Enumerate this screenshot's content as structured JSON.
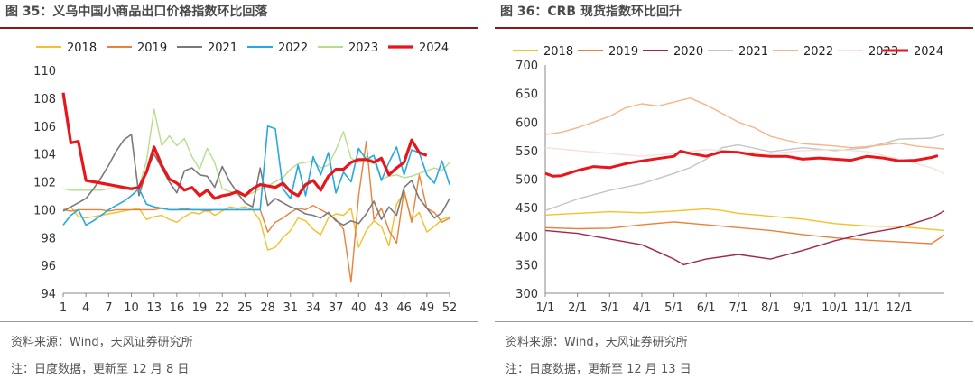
{
  "left": {
    "title": "图 35：义乌中国小商品出口价格指数环比回落",
    "source": "资料来源：Wind，天风证券研究所",
    "note": "注：日度数据，更新至 12 月 8 日"
  },
  "right": {
    "title": "图 36：CRB 现货指数环比回升",
    "source": "资料来源：Wind，天风证券研究所",
    "note": "注：日度数据，更新至 12 月 13 日"
  },
  "chart_data": [
    {
      "type": "line",
      "title": "图 35：义乌中国小商品出口价格指数环比回落",
      "x_ticks": [
        "1",
        "4",
        "7",
        "10",
        "13",
        "16",
        "19",
        "22",
        "25",
        "28",
        "31",
        "34",
        "37",
        "40",
        "43",
        "46",
        "49",
        "52"
      ],
      "xlim": [
        1,
        52
      ],
      "ylim": [
        94,
        110
      ],
      "y_ticks": [
        "94",
        "96",
        "98",
        "100",
        "102",
        "104",
        "106",
        "108",
        "110"
      ],
      "legend_position": "top",
      "series": [
        {
          "name": "2018",
          "color": "#F5C02A",
          "width": 1.4,
          "x": [
            1,
            2,
            3,
            4,
            5,
            6,
            7,
            8,
            9,
            10,
            11,
            12,
            13,
            14,
            15,
            16,
            17,
            18,
            19,
            20,
            21,
            22,
            23,
            24,
            25,
            26,
            27,
            28,
            29,
            30,
            31,
            32,
            33,
            34,
            35,
            36,
            37,
            38,
            39,
            40,
            41,
            42,
            43,
            44,
            45,
            46,
            47,
            48,
            49,
            50,
            51,
            52
          ],
          "y": [
            100.0,
            100.2,
            99.5,
            99.4,
            99.5,
            99.6,
            99.7,
            99.8,
            99.9,
            100.0,
            100.1,
            99.3,
            99.5,
            99.6,
            99.3,
            99.1,
            99.5,
            99.8,
            99.7,
            100.0,
            99.6,
            99.9,
            100.2,
            100.1,
            100.2,
            100.0,
            99.2,
            97.1,
            97.3,
            98.0,
            98.5,
            99.4,
            99.2,
            98.6,
            98.2,
            99.4,
            99.7,
            99.6,
            100.1,
            97.3,
            98.5,
            99.2,
            98.8,
            97.4,
            100.4,
            101.2,
            99.3,
            99.8,
            98.4,
            98.8,
            99.3,
            99.5
          ]
        },
        {
          "name": "2019",
          "color": "#E8823A",
          "width": 1.4,
          "x": [
            1,
            2,
            3,
            4,
            5,
            6,
            7,
            8,
            9,
            10,
            11,
            12,
            13,
            14,
            15,
            16,
            17,
            18,
            19,
            20,
            21,
            22,
            23,
            24,
            25,
            26,
            27,
            28,
            29,
            30,
            31,
            32,
            33,
            34,
            35,
            36,
            37,
            38,
            39,
            40,
            41,
            42,
            43,
            44,
            45,
            46,
            47,
            48,
            49,
            50,
            51,
            52
          ],
          "y": [
            100.0,
            99.9,
            100.0,
            100.0,
            100.0,
            100.0,
            99.9,
            100.0,
            100.0,
            100.0,
            100.0,
            100.0,
            100.0,
            100.1,
            100.0,
            100.0,
            100.1,
            100.0,
            100.0,
            99.9,
            100.0,
            100.0,
            100.0,
            100.0,
            100.0,
            100.0,
            100.0,
            98.4,
            99.1,
            99.4,
            99.8,
            100.1,
            100.0,
            100.3,
            100.0,
            99.7,
            99.3,
            98.6,
            94.8,
            101.0,
            104.9,
            99.3,
            100.1,
            98.5,
            97.6,
            101.4,
            99.1,
            102.5,
            100.1,
            99.8,
            99.1,
            99.4
          ]
        },
        {
          "name": "2021",
          "color": "#7A7A7A",
          "width": 1.6,
          "x": [
            1,
            2,
            3,
            4,
            5,
            6,
            7,
            8,
            9,
            10,
            11,
            12,
            13,
            14,
            15,
            16,
            17,
            18,
            19,
            20,
            21,
            22,
            23,
            24,
            25,
            26,
            27,
            28,
            29,
            30,
            31,
            32,
            33,
            34,
            35,
            36,
            37,
            38,
            39,
            40,
            41,
            42,
            43,
            44,
            45,
            46,
            47,
            48,
            49,
            50,
            51,
            52
          ],
          "y": [
            99.9,
            100.2,
            100.5,
            100.8,
            101.5,
            102.3,
            103.2,
            104.2,
            105.0,
            105.4,
            101.0,
            102.8,
            104.0,
            103.0,
            102.0,
            101.2,
            102.8,
            103.0,
            102.5,
            102.4,
            101.6,
            103.1,
            102.0,
            101.2,
            100.5,
            100.2,
            103.0,
            100.3,
            100.8,
            100.5,
            100.2,
            100.0,
            99.7,
            99.6,
            99.4,
            99.8,
            99.2,
            98.9,
            99.2,
            99.0,
            99.7,
            100.6,
            99.3,
            100.2,
            99.6,
            101.6,
            102.1,
            100.8,
            100.1,
            99.4,
            99.8,
            100.8
          ]
        },
        {
          "name": "2022",
          "color": "#26A9E0",
          "width": 1.6,
          "x": [
            1,
            2,
            3,
            4,
            5,
            6,
            7,
            8,
            9,
            10,
            11,
            12,
            13,
            14,
            15,
            16,
            17,
            18,
            19,
            20,
            21,
            22,
            23,
            24,
            25,
            26,
            27,
            28,
            29,
            30,
            31,
            32,
            33,
            34,
            35,
            36,
            37,
            38,
            39,
            40,
            41,
            42,
            43,
            44,
            45,
            46,
            47,
            48,
            49,
            50,
            51,
            52
          ],
          "y": [
            98.9,
            99.6,
            100.0,
            98.9,
            99.2,
            99.6,
            100.0,
            100.3,
            100.6,
            101.0,
            101.5,
            100.4,
            100.2,
            100.1,
            100.0,
            100.0,
            100.0,
            100.0,
            100.0,
            100.0,
            100.0,
            100.0,
            100.0,
            100.0,
            100.0,
            100.0,
            100.0,
            106.0,
            105.8,
            101.5,
            100.8,
            103.2,
            101.0,
            103.8,
            102.5,
            104.1,
            101.2,
            102.7,
            102.0,
            104.4,
            103.6,
            103.9,
            102.1,
            103.4,
            104.5,
            102.5,
            104.3,
            104.1,
            102.5,
            101.9,
            103.5,
            101.8
          ]
        },
        {
          "name": "2023",
          "color": "#B5DE8C",
          "width": 1.4,
          "x": [
            1,
            2,
            3,
            4,
            5,
            6,
            7,
            8,
            9,
            10,
            11,
            12,
            13,
            14,
            15,
            16,
            17,
            18,
            19,
            20,
            21,
            22,
            23,
            24,
            25,
            26,
            27,
            28,
            29,
            30,
            31,
            32,
            33,
            34,
            35,
            36,
            37,
            38,
            39,
            40,
            41,
            42,
            43,
            44,
            45,
            46,
            47,
            48,
            49,
            50,
            51,
            52
          ],
          "y": [
            101.5,
            101.4,
            101.4,
            101.4,
            101.4,
            101.4,
            101.5,
            101.5,
            101.5,
            101.4,
            101.6,
            103.5,
            107.2,
            104.6,
            105.3,
            104.6,
            105.1,
            103.8,
            102.9,
            104.4,
            103.4,
            101.5,
            101.3,
            101.1,
            101.0,
            101.2,
            101.5,
            101.7,
            102.0,
            102.3,
            102.9,
            103.3,
            103.4,
            103.5,
            103.0,
            103.2,
            104.3,
            105.6,
            103.7,
            103.4,
            103.8,
            103.5,
            102.2,
            102.4,
            102.5,
            102.3,
            102.4,
            102.6,
            102.8,
            103.0,
            102.8,
            103.4
          ]
        },
        {
          "name": "2024",
          "color": "#E8151B",
          "width": 3.2,
          "x": [
            1,
            2,
            3,
            4,
            5,
            6,
            7,
            8,
            9,
            10,
            11,
            12,
            13,
            14,
            15,
            16,
            17,
            18,
            19,
            20,
            21,
            22,
            23,
            24,
            25,
            26,
            27,
            28,
            29,
            30,
            31,
            32,
            33,
            34,
            35,
            36,
            37,
            38,
            39,
            40,
            41,
            42,
            43,
            44,
            45,
            46,
            47,
            48,
            49
          ],
          "y": [
            108.4,
            104.8,
            104.9,
            102.1,
            102.0,
            101.9,
            101.8,
            101.7,
            101.6,
            101.5,
            101.6,
            102.7,
            104.5,
            103.2,
            102.2,
            101.9,
            101.4,
            101.6,
            101.0,
            101.4,
            100.8,
            101.0,
            101.1,
            101.3,
            101.0,
            101.5,
            101.8,
            101.7,
            101.6,
            101.9,
            101.3,
            101.0,
            101.8,
            102.1,
            101.4,
            102.4,
            102.9,
            102.9,
            103.4,
            103.6,
            103.6,
            103.4,
            103.7,
            102.5,
            103.0,
            103.4,
            105.0,
            104.1,
            103.9
          ]
        }
      ]
    },
    {
      "type": "line",
      "title": "图 36：CRB 现货指数环比回升",
      "x_ticks": [
        "1/1",
        "2/1",
        "3/1",
        "4/1",
        "5/1",
        "6/1",
        "7/1",
        "8/1",
        "9/1",
        "10/1",
        "11/1",
        "12/1"
      ],
      "xlim": [
        0,
        12.4
      ],
      "ylim": [
        300,
        700
      ],
      "y_ticks": [
        "300",
        "350",
        "400",
        "450",
        "500",
        "550",
        "600",
        "650",
        "700"
      ],
      "legend_position": "top",
      "series": [
        {
          "name": "2018",
          "color": "#F5C02A",
          "width": 1.4,
          "x": [
            0,
            1,
            2,
            3,
            4,
            5,
            5.5,
            6,
            7,
            8,
            9,
            10,
            11,
            12,
            12.4
          ],
          "y": [
            437,
            440,
            443,
            441,
            444,
            448,
            445,
            440,
            435,
            430,
            422,
            418,
            417,
            412,
            410
          ]
        },
        {
          "name": "2019",
          "color": "#E8823A",
          "width": 1.4,
          "x": [
            0,
            1,
            2,
            3,
            4,
            5,
            6,
            7,
            8,
            9,
            10,
            11,
            12,
            12.4
          ],
          "y": [
            415,
            413,
            414,
            420,
            425,
            420,
            415,
            410,
            403,
            397,
            393,
            390,
            387,
            402
          ]
        },
        {
          "name": "2020",
          "color": "#A0274B",
          "width": 1.4,
          "x": [
            0,
            1,
            1.5,
            2,
            3,
            3.6,
            4,
            4.3,
            5,
            6,
            7,
            8,
            9,
            10,
            11,
            12,
            12.4
          ],
          "y": [
            410,
            405,
            400,
            395,
            385,
            370,
            360,
            350,
            360,
            368,
            360,
            375,
            392,
            405,
            415,
            432,
            444
          ]
        },
        {
          "name": "2021",
          "color": "#C5C5C5",
          "width": 1.4,
          "x": [
            0,
            0.5,
            1,
            2,
            3,
            4,
            4.5,
            5,
            5.5,
            6,
            7,
            8,
            9,
            10,
            11,
            12,
            12.4
          ],
          "y": [
            445,
            455,
            465,
            480,
            492,
            510,
            520,
            535,
            555,
            560,
            548,
            555,
            550,
            555,
            570,
            572,
            578
          ]
        },
        {
          "name": "2022",
          "color": "#F5B58A",
          "width": 1.4,
          "x": [
            0,
            0.5,
            1,
            1.5,
            2,
            2.5,
            3,
            3.5,
            4,
            4.5,
            5,
            5.5,
            6,
            6.5,
            7,
            7.5,
            8,
            8.5,
            9,
            9.5,
            10,
            10.5,
            11,
            11.5,
            12,
            12.4
          ],
          "y": [
            578,
            582,
            590,
            600,
            610,
            625,
            632,
            628,
            635,
            642,
            630,
            615,
            600,
            590,
            575,
            568,
            562,
            560,
            558,
            555,
            557,
            560,
            563,
            558,
            555,
            553
          ]
        },
        {
          "name": "2023",
          "color": "#F7E0D8",
          "width": 1.4,
          "x": [
            0,
            1,
            2,
            3,
            4,
            5,
            6,
            7,
            8,
            9,
            10,
            11,
            12,
            12.4
          ],
          "y": [
            555,
            550,
            545,
            540,
            545,
            552,
            548,
            545,
            550,
            552,
            548,
            535,
            520,
            510
          ]
        },
        {
          "name": "2024",
          "color": "#E8151B",
          "width": 3.0,
          "x": [
            0,
            0.25,
            0.5,
            1,
            1.5,
            2,
            2.5,
            3,
            3.5,
            4,
            4.2,
            4.5,
            5,
            5.5,
            6,
            6.5,
            7,
            7.5,
            8,
            8.5,
            9,
            9.5,
            10,
            10.5,
            11,
            11.5,
            12,
            12.2
          ],
          "y": [
            510,
            505,
            506,
            515,
            522,
            520,
            527,
            532,
            536,
            540,
            549,
            545,
            540,
            548,
            547,
            542,
            540,
            540,
            535,
            537,
            535,
            533,
            540,
            537,
            532,
            533,
            538,
            541
          ]
        }
      ]
    }
  ]
}
